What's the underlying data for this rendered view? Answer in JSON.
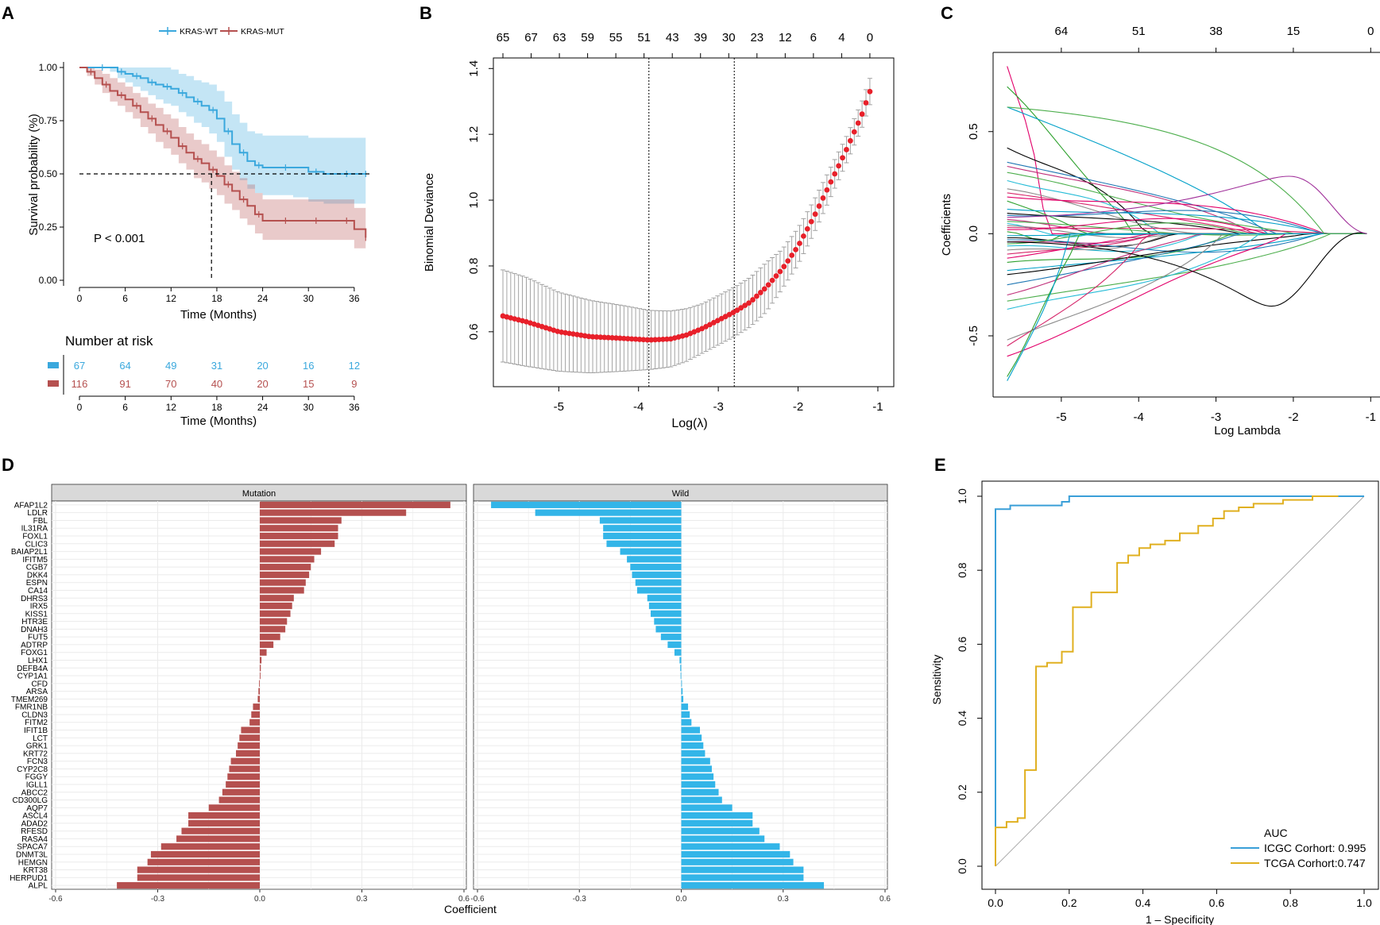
{
  "colors": {
    "wt": "#3aa8dd",
    "mut": "#b5504f",
    "mutation_bar": "#b5504f",
    "wild_bar": "#33b5e8",
    "icgc": "#3a9fd8",
    "tcga": "#e0b020",
    "lasso_point": "#e8202a"
  },
  "panels": {
    "A": "A",
    "B": "B",
    "C": "C",
    "D": "D",
    "E": "E"
  },
  "chart_data": [
    {
      "id": "A",
      "type": "line",
      "subtype": "kaplan-meier",
      "legend": [
        "KRAS-WT",
        "KRAS-MUT"
      ],
      "xlabel": "Time (Months)",
      "ylabel": "Survival probability (%)",
      "xticks": [
        "0",
        "6",
        "12",
        "18",
        "24",
        "30",
        "36"
      ],
      "yticks": [
        "0.00",
        "0.25",
        "0.50",
        "0.75",
        "1.00"
      ],
      "xlim": [
        0,
        36
      ],
      "ylim": [
        0,
        1
      ],
      "pvalue": "P < 0.001",
      "median_line": {
        "y": 0.5,
        "x_mut": 17.3
      },
      "series": [
        {
          "name": "KRAS-WT",
          "x": [
            0,
            2,
            4,
            5,
            6,
            7,
            8,
            9,
            10,
            11,
            12,
            13,
            14,
            15,
            16,
            17,
            18,
            19,
            20,
            21,
            22,
            23,
            24,
            26,
            28,
            30,
            32,
            34,
            36,
            37.5
          ],
          "y": [
            1,
            1,
            1,
            0.98,
            0.97,
            0.96,
            0.95,
            0.93,
            0.92,
            0.91,
            0.9,
            0.88,
            0.86,
            0.84,
            0.82,
            0.8,
            0.76,
            0.7,
            0.64,
            0.6,
            0.56,
            0.54,
            0.53,
            0.53,
            0.53,
            0.51,
            0.5,
            0.5,
            0.5,
            0.5
          ],
          "lower": [
            1,
            1,
            0.98,
            0.95,
            0.93,
            0.91,
            0.89,
            0.87,
            0.85,
            0.83,
            0.82,
            0.79,
            0.77,
            0.74,
            0.72,
            0.69,
            0.65,
            0.58,
            0.52,
            0.47,
            0.43,
            0.41,
            0.4,
            0.4,
            0.39,
            0.37,
            0.36,
            0.36,
            0.36,
            0.36
          ],
          "upper": [
            1,
            1,
            1,
            1,
            1,
            1,
            1,
            1,
            1,
            1,
            0.99,
            0.97,
            0.96,
            0.94,
            0.93,
            0.92,
            0.89,
            0.84,
            0.78,
            0.74,
            0.7,
            0.69,
            0.68,
            0.68,
            0.68,
            0.67,
            0.67,
            0.67,
            0.67,
            0.67
          ]
        },
        {
          "name": "KRAS-MUT",
          "x": [
            0,
            1,
            2,
            3,
            4,
            5,
            6,
            7,
            8,
            9,
            10,
            11,
            12,
            13,
            14,
            15,
            16,
            17,
            18,
            19,
            20,
            21,
            22,
            23,
            24,
            26,
            28,
            30,
            32,
            34,
            36,
            37.5
          ],
          "y": [
            1,
            0.98,
            0.95,
            0.92,
            0.89,
            0.87,
            0.85,
            0.82,
            0.79,
            0.76,
            0.73,
            0.7,
            0.67,
            0.63,
            0.6,
            0.57,
            0.55,
            0.52,
            0.49,
            0.45,
            0.42,
            0.38,
            0.35,
            0.31,
            0.28,
            0.28,
            0.28,
            0.28,
            0.28,
            0.28,
            0.24,
            0.2
          ],
          "lower": [
            1,
            0.96,
            0.92,
            0.88,
            0.84,
            0.82,
            0.79,
            0.76,
            0.72,
            0.69,
            0.65,
            0.62,
            0.59,
            0.55,
            0.52,
            0.48,
            0.46,
            0.43,
            0.4,
            0.36,
            0.33,
            0.29,
            0.26,
            0.22,
            0.19,
            0.19,
            0.19,
            0.19,
            0.19,
            0.19,
            0.15,
            0.12
          ],
          "upper": [
            1,
            1,
            0.99,
            0.97,
            0.95,
            0.93,
            0.91,
            0.88,
            0.86,
            0.83,
            0.81,
            0.78,
            0.76,
            0.72,
            0.69,
            0.66,
            0.64,
            0.61,
            0.58,
            0.54,
            0.51,
            0.48,
            0.45,
            0.41,
            0.38,
            0.38,
            0.38,
            0.38,
            0.38,
            0.38,
            0.34,
            0.3
          ]
        }
      ],
      "risk_table": {
        "title": "Number at risk",
        "x": [
          "0",
          "6",
          "12",
          "18",
          "24",
          "30",
          "36"
        ],
        "rows": [
          {
            "name": "KRAS-WT",
            "values": [
              "67",
              "64",
              "49",
              "31",
              "20",
              "16",
              "12"
            ]
          },
          {
            "name": "KRAS-MUT",
            "values": [
              "116",
              "91",
              "70",
              "40",
              "20",
              "15",
              "9"
            ]
          }
        ],
        "xlabel": "Time (Months)"
      }
    },
    {
      "id": "B",
      "type": "scatter",
      "subtype": "lasso-cv",
      "xlabel": "Log(λ)",
      "ylabel": "Binomial Deviance",
      "xticks": [
        "-5",
        "-4",
        "-3",
        "-2",
        "-1"
      ],
      "yticks": [
        "0.6",
        "0.8",
        "1.0",
        "1.2",
        "1.4"
      ],
      "xlim": [
        -5.75,
        -0.9
      ],
      "ylim": [
        0.45,
        1.42
      ],
      "top_labels": [
        "65",
        "67",
        "63",
        "59",
        "55",
        "51",
        "43",
        "39",
        "30",
        "23",
        "12",
        "6",
        "4",
        "0"
      ],
      "vlines": [
        -3.87,
        -2.8
      ],
      "curve": {
        "x": [
          -5.7,
          -5.4,
          -5.0,
          -4.6,
          -4.2,
          -3.87,
          -3.6,
          -3.4,
          -3.2,
          -3.0,
          -2.8,
          -2.6,
          -2.4,
          -2.2,
          -2.0,
          -1.8,
          -1.6,
          -1.4,
          -1.2,
          -1.1
        ],
        "y": [
          0.648,
          0.63,
          0.6,
          0.585,
          0.58,
          0.575,
          0.578,
          0.59,
          0.61,
          0.635,
          0.66,
          0.69,
          0.735,
          0.79,
          0.86,
          0.95,
          1.05,
          1.15,
          1.26,
          1.33
        ],
        "err": [
          0.14,
          0.135,
          0.12,
          0.11,
          0.1,
          0.09,
          0.085,
          0.08,
          0.075,
          0.075,
          0.075,
          0.075,
          0.075,
          0.06,
          0.055,
          0.05,
          0.045,
          0.04,
          0.04,
          0.04
        ]
      }
    },
    {
      "id": "C",
      "type": "line",
      "subtype": "coefficient-path",
      "xlabel": "Log Lambda",
      "ylabel": "Coefficients",
      "xticks": [
        "-5",
        "-4",
        "-3",
        "-2",
        "-1"
      ],
      "yticks": [
        "-0.5",
        "0.0",
        "0.5"
      ],
      "top_labels": [
        "64",
        "51",
        "38",
        "15",
        "0"
      ],
      "xlim": [
        -5.8,
        -0.9
      ],
      "ylim": [
        -0.78,
        0.88
      ]
    },
    {
      "id": "D",
      "type": "bar",
      "subtype": "faceted-horizontal",
      "facets": [
        "Mutation",
        "Wild"
      ],
      "xlabel": "Coefficient",
      "xticks": [
        "-0.6",
        "-0.3",
        "0.0",
        "0.3",
        "0.6"
      ],
      "xlim": [
        -0.6,
        0.6
      ],
      "categories": [
        "AFAP1L2",
        "LDLR",
        "FBL",
        "IL31RA",
        "FOXL1",
        "CLIC3",
        "BAIAP2L1",
        "IFITM5",
        "CGB7",
        "DKK4",
        "ESPN",
        "CA14",
        "DHRS3",
        "IRX5",
        "KISS1",
        "HTR3E",
        "DNAH3",
        "FUT5",
        "ADTRP",
        "FOXG1",
        "LHX1",
        "DEFB4A",
        "CYP1A1",
        "CFD",
        "ARSA",
        "TMEM269",
        "FMR1NB",
        "CLDN3",
        "FITM2",
        "IFIT1B",
        "LCT",
        "GRK1",
        "KRT72",
        "FCN3",
        "CYP2C8",
        "FGGY",
        "IGLL1",
        "ABCC2",
        "CD300LG",
        "AQP7",
        "ASCL4",
        "ADAD2",
        "RFESD",
        "RASA4",
        "SPACA7",
        "DNMT3L",
        "HEMGN",
        "KRT38",
        "HERPUD1",
        "ALPL"
      ],
      "series": [
        {
          "name": "Mutation",
          "values": [
            0.56,
            0.43,
            0.24,
            0.23,
            0.23,
            0.22,
            0.18,
            0.16,
            0.15,
            0.145,
            0.135,
            0.13,
            0.1,
            0.095,
            0.09,
            0.08,
            0.075,
            0.06,
            0.04,
            0.02,
            0.005,
            0.003,
            0.002,
            -0.002,
            -0.004,
            -0.006,
            -0.02,
            -0.025,
            -0.03,
            -0.055,
            -0.06,
            -0.065,
            -0.07,
            -0.085,
            -0.09,
            -0.095,
            -0.1,
            -0.11,
            -0.12,
            -0.15,
            -0.21,
            -0.21,
            -0.23,
            -0.245,
            -0.29,
            -0.32,
            -0.33,
            -0.36,
            -0.36,
            -0.42
          ]
        },
        {
          "name": "Wild",
          "values": [
            -0.56,
            -0.43,
            -0.24,
            -0.23,
            -0.23,
            -0.22,
            -0.18,
            -0.16,
            -0.15,
            -0.145,
            -0.135,
            -0.13,
            -0.1,
            -0.095,
            -0.09,
            -0.08,
            -0.075,
            -0.06,
            -0.04,
            -0.02,
            -0.005,
            -0.003,
            -0.002,
            0.002,
            0.004,
            0.006,
            0.02,
            0.025,
            0.03,
            0.055,
            0.06,
            0.065,
            0.07,
            0.085,
            0.09,
            0.095,
            0.1,
            0.11,
            0.12,
            0.15,
            0.21,
            0.21,
            0.23,
            0.245,
            0.29,
            0.32,
            0.33,
            0.36,
            0.36,
            0.42
          ]
        }
      ]
    },
    {
      "id": "E",
      "type": "line",
      "subtype": "roc",
      "xlabel": "1 – Specificity",
      "ylabel": "Sensitivity",
      "xticks": [
        "0.0",
        "0.2",
        "0.4",
        "0.6",
        "0.8",
        "1.0"
      ],
      "yticks": [
        "0.0",
        "0.2",
        "0.4",
        "0.6",
        "0.8",
        "1.0"
      ],
      "xlim": [
        0,
        1
      ],
      "ylim": [
        0,
        1
      ],
      "legend_title": "AUC",
      "series": [
        {
          "name": "ICGC Corhort: 0.995",
          "x": [
            0,
            0,
            0.01,
            0.04,
            0.04,
            0.18,
            0.18,
            0.2,
            0.2,
            1
          ],
          "y": [
            0,
            0.965,
            0.965,
            0.965,
            0.975,
            0.975,
            0.985,
            0.985,
            1,
            1
          ]
        },
        {
          "name": "TCGA Corhort:0.747",
          "x": [
            0,
            0,
            0.03,
            0.03,
            0.06,
            0.06,
            0.08,
            0.08,
            0.11,
            0.11,
            0.14,
            0.14,
            0.18,
            0.18,
            0.21,
            0.21,
            0.26,
            0.26,
            0.33,
            0.33,
            0.36,
            0.36,
            0.39,
            0.39,
            0.42,
            0.42,
            0.46,
            0.46,
            0.5,
            0.5,
            0.55,
            0.55,
            0.59,
            0.59,
            0.62,
            0.62,
            0.66,
            0.66,
            0.7,
            0.7,
            0.78,
            0.78,
            0.86,
            0.86,
            0.93
          ],
          "y": [
            0,
            0.105,
            0.105,
            0.12,
            0.12,
            0.13,
            0.13,
            0.26,
            0.26,
            0.54,
            0.54,
            0.55,
            0.55,
            0.58,
            0.58,
            0.7,
            0.7,
            0.74,
            0.74,
            0.82,
            0.82,
            0.84,
            0.84,
            0.86,
            0.86,
            0.87,
            0.87,
            0.88,
            0.88,
            0.9,
            0.9,
            0.92,
            0.92,
            0.94,
            0.94,
            0.96,
            0.96,
            0.97,
            0.97,
            0.98,
            0.98,
            0.99,
            0.99,
            1,
            1
          ]
        }
      ]
    }
  ]
}
